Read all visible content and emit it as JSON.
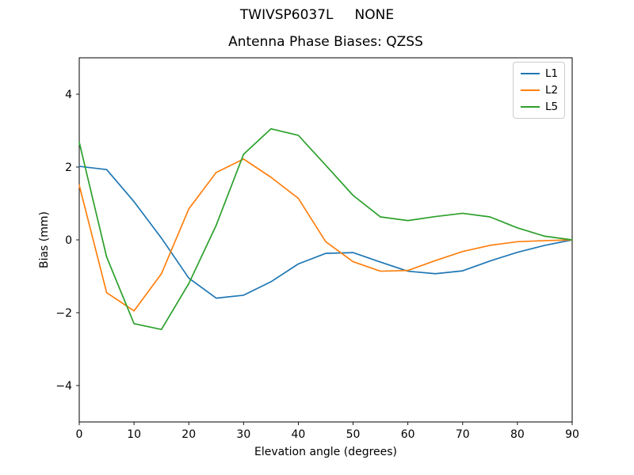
{
  "figure": {
    "suptitle": "TWIVSP6037L     NONE",
    "background_color": "#ffffff"
  },
  "chart_data": {
    "type": "line",
    "title": "Antenna Phase Biases: QZSS",
    "xlabel": "Elevation angle (degrees)",
    "ylabel": "Bias (mm)",
    "xlim": [
      0,
      90
    ],
    "ylim": [
      -5,
      5
    ],
    "xticks": [
      0,
      10,
      20,
      30,
      40,
      50,
      60,
      70,
      80,
      90
    ],
    "yticks": [
      -4,
      -2,
      0,
      2,
      4
    ],
    "grid": false,
    "legend": {
      "position": "upper right",
      "entries": [
        "L1",
        "L2",
        "L5"
      ]
    },
    "x": [
      0,
      5,
      10,
      15,
      20,
      25,
      30,
      35,
      40,
      45,
      50,
      55,
      60,
      65,
      70,
      75,
      80,
      85,
      90
    ],
    "series": [
      {
        "name": "L1",
        "color": "#1f77b4",
        "values": [
          2.02,
          1.93,
          1.05,
          0.05,
          -1.05,
          -1.6,
          -1.52,
          -1.15,
          -0.66,
          -0.37,
          -0.35,
          -0.61,
          -0.86,
          -0.93,
          -0.85,
          -0.58,
          -0.34,
          -0.15,
          0.0
        ]
      },
      {
        "name": "L2",
        "color": "#ff7f0e",
        "values": [
          1.5,
          -1.45,
          -1.95,
          -0.93,
          0.85,
          1.85,
          2.22,
          1.72,
          1.14,
          -0.05,
          -0.6,
          -0.86,
          -0.84,
          -0.57,
          -0.32,
          -0.15,
          -0.05,
          -0.02,
          0.0
        ]
      },
      {
        "name": "L5",
        "color": "#2ca02c",
        "values": [
          2.68,
          -0.47,
          -2.3,
          -2.46,
          -1.2,
          0.4,
          2.35,
          3.05,
          2.87,
          2.05,
          1.22,
          0.63,
          0.53,
          0.64,
          0.73,
          0.63,
          0.33,
          0.1,
          0.0
        ]
      }
    ]
  }
}
